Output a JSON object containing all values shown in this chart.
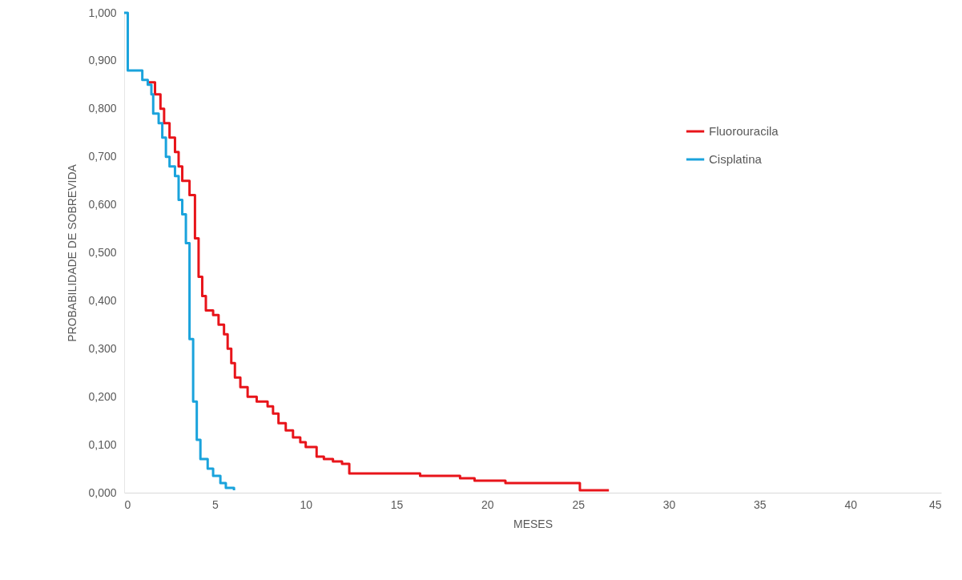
{
  "chart_data": {
    "type": "step",
    "xlabel": "MESES",
    "ylabel": "PROBABILIDADE DE SOBREVIDA",
    "xlim": [
      0,
      45
    ],
    "xticks": [
      0,
      5,
      10,
      15,
      20,
      25,
      30,
      35,
      40,
      45
    ],
    "ylim": [
      0,
      1
    ],
    "yticks": [
      {
        "value": 0,
        "label": "0,000"
      },
      {
        "value": 0.1,
        "label": "0,100"
      },
      {
        "value": 0.2,
        "label": "0,200"
      },
      {
        "value": 0.3,
        "label": "0,300"
      },
      {
        "value": 0.4,
        "label": "0,400"
      },
      {
        "value": 0.5,
        "label": "0,500"
      },
      {
        "value": 0.6,
        "label": "0,600"
      },
      {
        "value": 0.7,
        "label": "0,700"
      },
      {
        "value": 0.8,
        "label": "0,800"
      },
      {
        "value": 0.9,
        "label": "0,900"
      },
      {
        "value": 1,
        "label": "1,000"
      }
    ],
    "grid": false,
    "legend": "top right",
    "marker": "none",
    "line_style": "solid",
    "series": [
      {
        "name": "Fluorouracila",
        "color": "#e8141a",
        "x": [
          1.3,
          1.7,
          2.0,
          2.2,
          2.5,
          2.8,
          3.0,
          3.2,
          3.6,
          3.9,
          4.1,
          4.3,
          4.5,
          4.9,
          5.2,
          5.5,
          5.7,
          5.9,
          6.1,
          6.4,
          6.8,
          7.3,
          7.9,
          8.2,
          8.5,
          8.9,
          9.3,
          9.7,
          10.0,
          10.6,
          11.0,
          11.5,
          12.0,
          12.4,
          16.3,
          18.5,
          19.3,
          21.0,
          25.1,
          26.7
        ],
        "values": [
          0.855,
          0.83,
          0.8,
          0.77,
          0.74,
          0.71,
          0.68,
          0.65,
          0.62,
          0.53,
          0.45,
          0.41,
          0.38,
          0.37,
          0.35,
          0.33,
          0.3,
          0.27,
          0.24,
          0.22,
          0.2,
          0.19,
          0.18,
          0.165,
          0.145,
          0.13,
          0.115,
          0.105,
          0.095,
          0.075,
          0.07,
          0.065,
          0.06,
          0.04,
          0.035,
          0.03,
          0.025,
          0.02,
          0.005,
          0.005
        ]
      },
      {
        "name": "Cisplatina",
        "color": "#1aa3dc",
        "x": [
          0,
          0.2,
          1.0,
          1.3,
          1.5,
          1.6,
          1.9,
          2.1,
          2.3,
          2.5,
          2.8,
          3.0,
          3.2,
          3.4,
          3.6,
          3.8,
          4.0,
          4.2,
          4.6,
          4.9,
          5.3,
          5.6,
          6.05
        ],
        "values": [
          1.0,
          0.88,
          0.86,
          0.85,
          0.83,
          0.79,
          0.77,
          0.74,
          0.7,
          0.68,
          0.66,
          0.61,
          0.58,
          0.52,
          0.32,
          0.19,
          0.11,
          0.07,
          0.05,
          0.035,
          0.02,
          0.01,
          0.005
        ]
      }
    ]
  }
}
